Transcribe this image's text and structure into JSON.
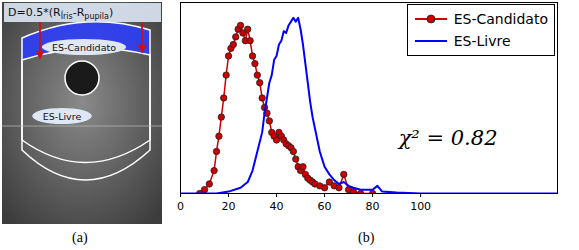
{
  "diagram": {
    "formula": [
      {
        "text": "D=0.5*(R"
      },
      {
        "text": "Íris",
        "sub": true
      },
      {
        "text": "-R"
      },
      {
        "text": "pupila",
        "sub": true
      },
      {
        "text": ")"
      }
    ],
    "regions": [
      "ES-Candidato",
      "ES-Livre"
    ],
    "caption": "(a)"
  },
  "chart_data": {
    "type": "line",
    "caption": "(b)",
    "xlim": [
      0,
      157
    ],
    "xticks": [
      0,
      20,
      40,
      60,
      80,
      100
    ],
    "ylim": [
      0,
      1
    ],
    "yticks": [],
    "tick_labels": "x",
    "legend": "top-right",
    "annotations": [
      "χ² = 0.82"
    ],
    "series": [
      {
        "name": "ES-Candidato",
        "color": "#cc0000",
        "marker": "circle",
        "x": [
          8,
          10,
          12,
          14,
          15,
          16,
          17,
          18,
          19,
          20,
          21,
          22,
          23,
          24,
          25,
          26,
          27,
          28,
          29,
          30,
          31,
          32,
          33,
          34,
          35,
          36,
          37,
          38,
          39,
          40,
          41,
          42,
          43,
          44,
          45,
          46,
          47,
          48,
          49,
          50,
          51,
          52,
          53,
          54,
          55,
          56,
          58,
          60,
          62,
          64,
          66,
          68,
          70,
          72,
          75,
          80
        ],
        "values": [
          0.0,
          0.02,
          0.05,
          0.12,
          0.22,
          0.3,
          0.4,
          0.5,
          0.62,
          0.72,
          0.76,
          0.78,
          0.82,
          0.86,
          0.88,
          0.84,
          0.8,
          0.86,
          0.8,
          0.72,
          0.68,
          0.62,
          0.58,
          0.5,
          0.45,
          0.42,
          0.38,
          0.32,
          0.3,
          0.28,
          0.32,
          0.3,
          0.28,
          0.26,
          0.25,
          0.24,
          0.22,
          0.18,
          0.14,
          0.12,
          0.14,
          0.1,
          0.08,
          0.07,
          0.06,
          0.05,
          0.04,
          0.03,
          0.06,
          0.04,
          0.03,
          0.1,
          0.02,
          0.01,
          0.0,
          0.0
        ]
      },
      {
        "name": "ES-Livre",
        "color": "#0000ff",
        "x": [
          0,
          10,
          15,
          20,
          25,
          28,
          30,
          32,
          34,
          35,
          36,
          37,
          38,
          39,
          40,
          41,
          42,
          43,
          44,
          45,
          46,
          47,
          48,
          49,
          50,
          51,
          52,
          53,
          54,
          55,
          56,
          57,
          58,
          59,
          60,
          62,
          64,
          66,
          68,
          70,
          72,
          75,
          80,
          82,
          84,
          90,
          100,
          120,
          140,
          157
        ],
        "values": [
          0,
          0,
          0,
          0.01,
          0.03,
          0.06,
          0.12,
          0.22,
          0.32,
          0.42,
          0.5,
          0.58,
          0.62,
          0.7,
          0.72,
          0.78,
          0.8,
          0.85,
          0.84,
          0.88,
          0.9,
          0.92,
          0.9,
          0.92,
          0.86,
          0.78,
          0.68,
          0.58,
          0.48,
          0.4,
          0.34,
          0.28,
          0.22,
          0.18,
          0.14,
          0.1,
          0.07,
          0.05,
          0.06,
          0.04,
          0.03,
          0.02,
          0.02,
          0.04,
          0.01,
          0.005,
          0,
          0,
          0,
          0
        ]
      }
    ]
  }
}
